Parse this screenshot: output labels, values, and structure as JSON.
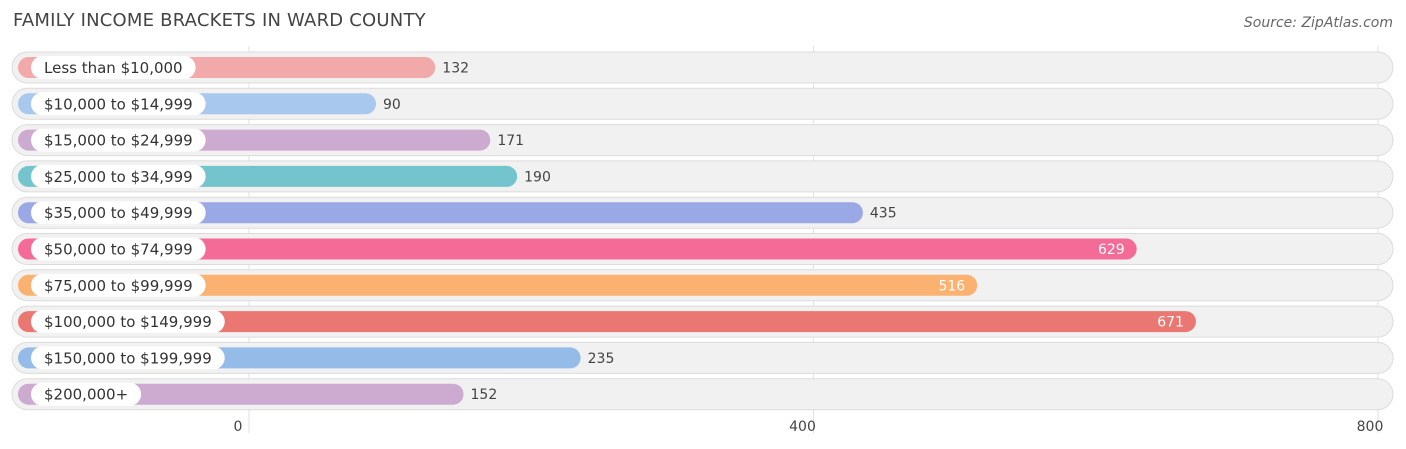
{
  "title": "FAMILY INCOME BRACKETS IN WARD COUNTY",
  "source": "Source: ZipAtlas.com",
  "chart_data": {
    "type": "bar",
    "orientation": "horizontal",
    "title": "FAMILY INCOME BRACKETS IN WARD COUNTY",
    "xlabel": "",
    "ylabel": "",
    "xlim": [
      0,
      800
    ],
    "xticks": [
      0,
      400,
      800
    ],
    "grid": true,
    "categories": [
      "Less than $10,000",
      "$10,000 to $14,999",
      "$15,000 to $24,999",
      "$25,000 to $34,999",
      "$35,000 to $49,999",
      "$50,000 to $74,999",
      "$75,000 to $99,999",
      "$100,000 to $149,999",
      "$150,000 to $199,999",
      "$200,000+"
    ],
    "values": [
      132,
      90,
      171,
      190,
      435,
      629,
      516,
      671,
      235,
      152
    ],
    "colors": [
      "#f2a9a9",
      "#a9c8ee",
      "#cdaad0",
      "#73c4cc",
      "#9ba8e6",
      "#f56b98",
      "#fbb271",
      "#ea7772",
      "#95bce8",
      "#cdaad0"
    ]
  }
}
